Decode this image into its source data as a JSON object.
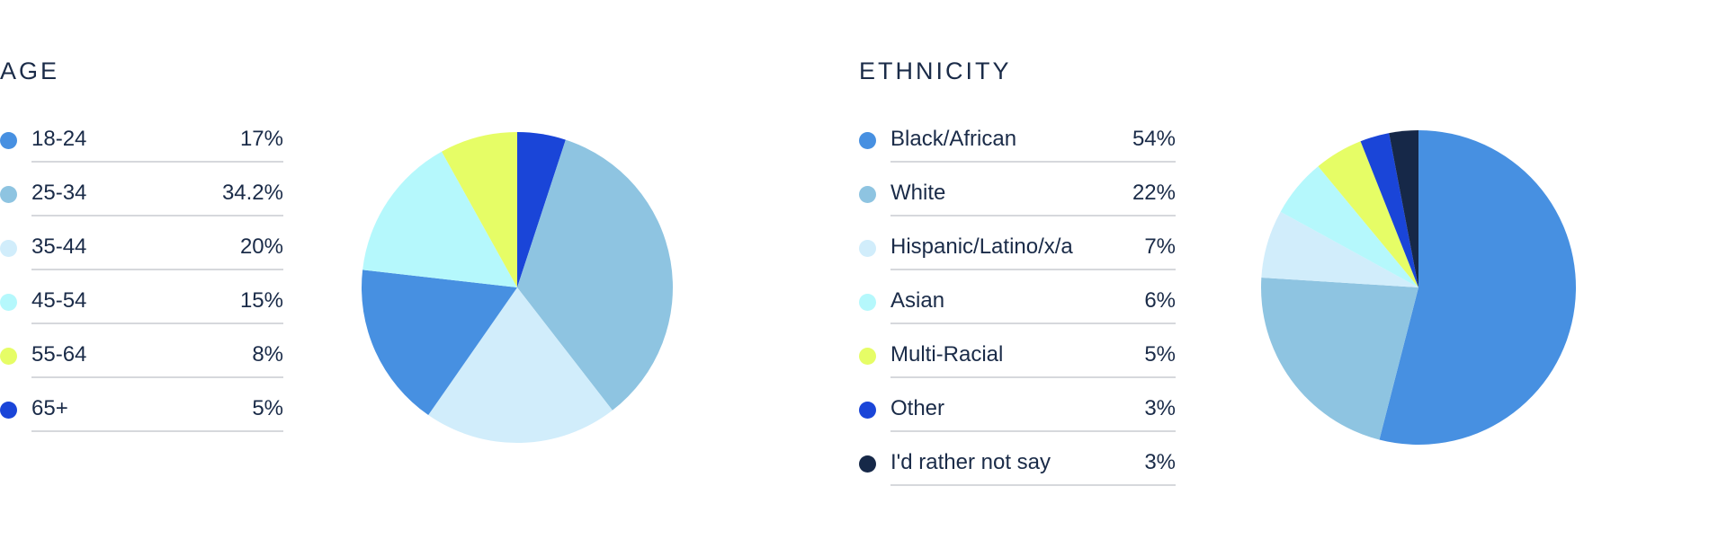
{
  "chart_data": [
    {
      "type": "pie",
      "title": "AGE",
      "categories": [
        "18-24",
        "25-34",
        "35-44",
        "45-54",
        "55-64",
        "65+"
      ],
      "values": [
        17,
        34.2,
        20,
        15,
        8,
        5
      ],
      "value_labels": [
        "17%",
        "34.2%",
        "20%",
        "15%",
        "8%",
        "5%"
      ],
      "colors": [
        "#4790e1",
        "#8ec4e1",
        "#d1edfb",
        "#b5f8fc",
        "#e6fd66",
        "#1a45d8"
      ],
      "slice_order_clockwise_from_top": [
        "65+",
        "25-34",
        "35-44",
        "18-24",
        "45-54",
        "55-64"
      ],
      "legend": "left"
    },
    {
      "type": "pie",
      "title": "ETHNICITY",
      "categories": [
        "Black/African",
        "White",
        "Hispanic/Latino/x/a",
        "Asian",
        "Multi-Racial",
        "Other",
        "I'd rather not say"
      ],
      "values": [
        54,
        22,
        7,
        6,
        5,
        3,
        3
      ],
      "value_labels": [
        "54%",
        "22%",
        "7%",
        "6%",
        "5%",
        "3%",
        "3%"
      ],
      "colors": [
        "#4790e1",
        "#8ec4e1",
        "#d1edfb",
        "#b5f8fc",
        "#e6fd66",
        "#1a45d8",
        "#162848"
      ],
      "slice_order_clockwise_from_top": [
        "Black/African",
        "White",
        "Hispanic/Latino/x/a",
        "Asian",
        "Multi-Racial",
        "Other",
        "I'd rather not say"
      ],
      "legend": "left"
    }
  ]
}
